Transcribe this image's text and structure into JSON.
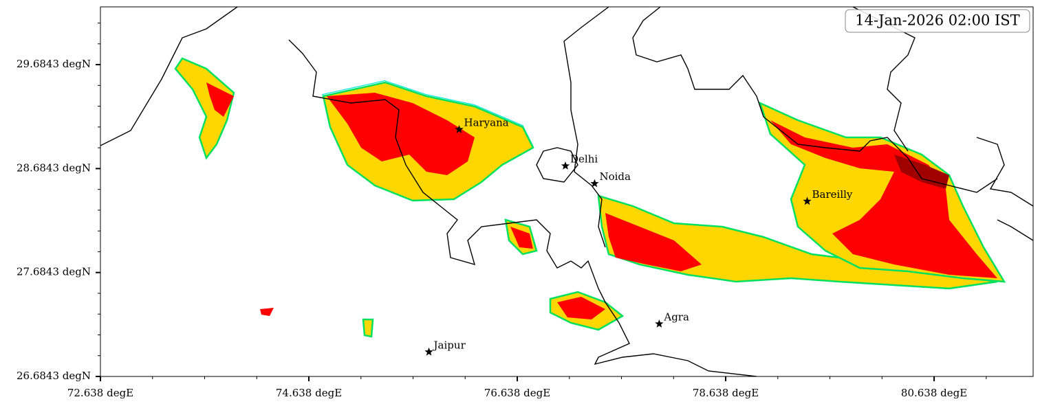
{
  "timestamp": "14-Jan-2026 02:00 IST",
  "xlim": [
    72.638,
    81.588
  ],
  "ylim": [
    26.6843,
    30.24
  ],
  "xticks": [
    {
      "value": 72.638,
      "label": "72.638 degE"
    },
    {
      "value": 74.638,
      "label": "74.638 degE"
    },
    {
      "value": 76.638,
      "label": "76.638 degE"
    },
    {
      "value": 78.638,
      "label": "78.638 degE"
    },
    {
      "value": 80.638,
      "label": "80.638 degE"
    }
  ],
  "yticks": [
    {
      "value": 26.6843,
      "label": "26.6843 degN"
    },
    {
      "value": 27.6843,
      "label": "27.6843 degN"
    },
    {
      "value": 28.6843,
      "label": "28.6843 degN"
    },
    {
      "value": 29.6843,
      "label": "29.6843 degN"
    }
  ],
  "cities": [
    {
      "name": "Haryana",
      "lon": 76.08,
      "lat": 29.06
    },
    {
      "name": "Delhi",
      "lon": 77.1,
      "lat": 28.71
    },
    {
      "name": "Noida",
      "lon": 77.38,
      "lat": 28.54
    },
    {
      "name": "Bareilly",
      "lon": 79.42,
      "lat": 28.37
    },
    {
      "name": "Agra",
      "lon": 78.0,
      "lat": 27.19
    },
    {
      "name": "Jaipur",
      "lon": 75.79,
      "lat": 26.92
    }
  ]
}
